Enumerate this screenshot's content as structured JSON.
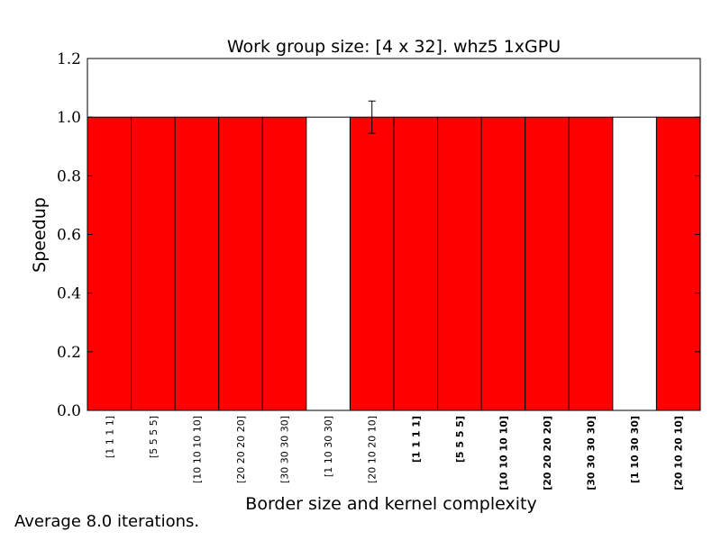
{
  "chart_data": {
    "type": "bar",
    "title": "Work group size: [4 x 32]. whz5 1xGPU",
    "xlabel": "Border size and kernel complexity",
    "ylabel": "Speedup",
    "ylim": [
      0.0,
      1.2
    ],
    "yticks": [
      "0.0",
      "0.2",
      "0.4",
      "0.6",
      "0.8",
      "1.0",
      "1.2"
    ],
    "grid": false,
    "categories": [
      "[1 1 1 1]",
      "[5 5 5 5]",
      "[10 10 10 10]",
      "[20 20 20 20]",
      "[30 30 30 30]",
      "[1 10 30 30]",
      "[20 10 20 10]",
      "[1 1 1 1]",
      "[5 5 5 5]",
      "[10 10 10 10]",
      "[20 20 20 20]",
      "[30 30 30 30]",
      "[1 10 30 30]",
      "[20 10 20 10]"
    ],
    "category_bold": [
      false,
      false,
      false,
      false,
      false,
      false,
      false,
      true,
      true,
      true,
      true,
      true,
      true,
      true
    ],
    "values": [
      1.0,
      1.0,
      1.0,
      1.0,
      1.0,
      1.0,
      1.0,
      1.0,
      1.0,
      1.0,
      1.0,
      1.0,
      1.0,
      1.0
    ],
    "colors": [
      "#ff0000",
      "#ff0000",
      "#ff0000",
      "#ff0000",
      "#ff0000",
      "#ffffff",
      "#ff0000",
      "#ff0000",
      "#ff0000",
      "#ff0000",
      "#ff0000",
      "#ff0000",
      "#ffffff",
      "#ff0000"
    ],
    "error_bars": [
      {
        "index": 6,
        "low": 0.945,
        "high": 1.055
      }
    ]
  },
  "footnote": "Average 8.0 iterations."
}
